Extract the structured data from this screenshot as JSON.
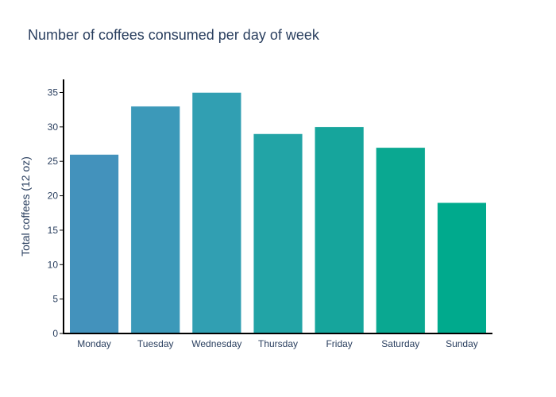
{
  "chart_data": {
    "type": "bar",
    "title": "Number of coffees consumed per day of week",
    "xlabel": "",
    "ylabel": "Total coffees (12 oz)",
    "categories": [
      "Monday",
      "Tuesday",
      "Wednesday",
      "Thursday",
      "Friday",
      "Saturday",
      "Sunday"
    ],
    "values": [
      26,
      33,
      35,
      29,
      30,
      27,
      19
    ],
    "ylim": [
      0,
      36.9
    ],
    "yticks": [
      0,
      5,
      10,
      15,
      20,
      25,
      30,
      35
    ],
    "grid": false,
    "legend": "none",
    "bar_colors": [
      "#4392bc",
      "#3c99b9",
      "#319fb2",
      "#22a4a6",
      "#16a59c",
      "#0aa891",
      "#00aa8d"
    ],
    "axis_color": "#000000",
    "text_color": "#2a3f5f"
  }
}
